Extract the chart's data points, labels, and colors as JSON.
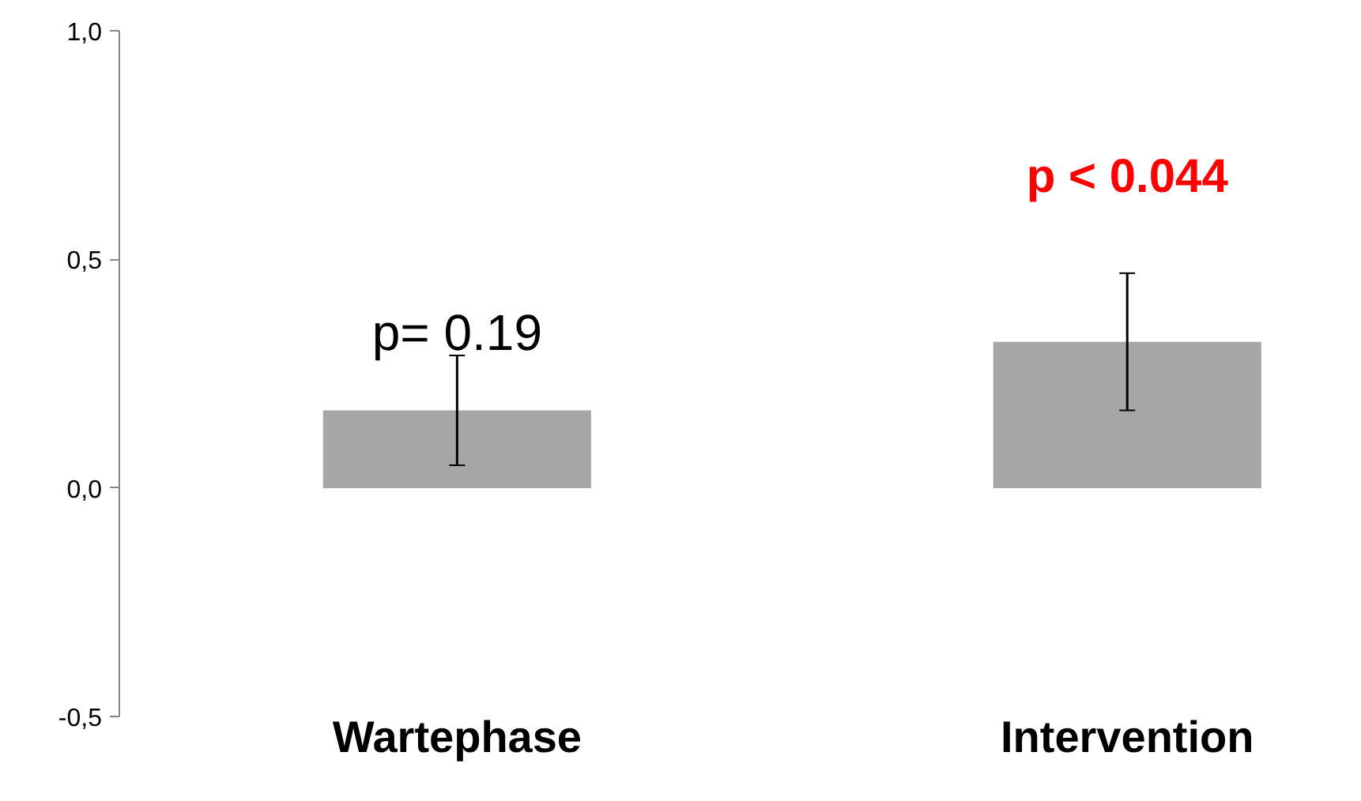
{
  "chart_data": {
    "type": "bar",
    "categories": [
      "Wartephase",
      "Intervention"
    ],
    "values": [
      0.17,
      0.32
    ],
    "errors": [
      0.12,
      0.15
    ],
    "color": "#a6a6a6",
    "ylim": [
      -0.5,
      1.0
    ],
    "yticks": [
      {
        "value": -0.5,
        "label": "-0,5"
      },
      {
        "value": 0.0,
        "label": "0,0"
      },
      {
        "value": 0.5,
        "label": "0,5"
      },
      {
        "value": 1.0,
        "label": "1,0"
      }
    ],
    "annotations": [
      "p= 0.19",
      "p < 0.044"
    ],
    "grid": false
  }
}
